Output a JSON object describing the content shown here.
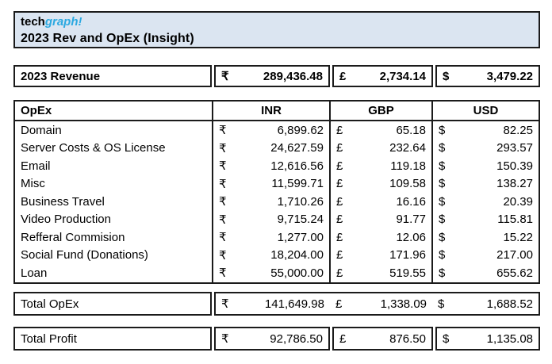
{
  "header": {
    "brand_prefix": "tech",
    "brand_suffix": "graph!",
    "title": "2023 Rev and OpEx (Insight)"
  },
  "currency": {
    "inr": "₹",
    "gbp": "£",
    "usd": "$"
  },
  "revenue": {
    "label": "2023 Revenue",
    "inr": "289,436.48",
    "gbp": "2,734.14",
    "usd": "3,479.22"
  },
  "opex_table": {
    "label_header": "OpEx",
    "columns": [
      "INR",
      "GBP",
      "USD"
    ],
    "rows": [
      {
        "label": "Domain",
        "inr": "6,899.62",
        "gbp": "65.18",
        "usd": "82.25"
      },
      {
        "label": "Server Costs & OS License",
        "inr": "24,627.59",
        "gbp": "232.64",
        "usd": "293.57"
      },
      {
        "label": "Email",
        "inr": "12,616.56",
        "gbp": "119.18",
        "usd": "150.39"
      },
      {
        "label": "Misc",
        "inr": "11,599.71",
        "gbp": "109.58",
        "usd": "138.27"
      },
      {
        "label": "Business Travel",
        "inr": "1,710.26",
        "gbp": "16.16",
        "usd": "20.39"
      },
      {
        "label": "Video Production",
        "inr": "9,715.24",
        "gbp": "91.77",
        "usd": "115.81"
      },
      {
        "label": "Refferal Commision",
        "inr": "1,277.00",
        "gbp": "12.06",
        "usd": "15.22"
      },
      {
        "label": "Social Fund (Donations)",
        "inr": "18,204.00",
        "gbp": "171.96",
        "usd": "217.00"
      },
      {
        "label": "Loan",
        "inr": "55,000.00",
        "gbp": "519.55",
        "usd": "655.62"
      }
    ]
  },
  "total_opex": {
    "label": "Total OpEx",
    "inr": "141,649.98",
    "gbp": "1,338.09",
    "usd": "1,688.52"
  },
  "total_profit": {
    "label": "Total Profit",
    "inr": "92,786.50",
    "gbp": "876.50",
    "usd": "1,135.08"
  },
  "colors": {
    "accent_blue": "#2ca9e1",
    "title_background": "#dbe5f1",
    "border": "#1b1b1b"
  }
}
